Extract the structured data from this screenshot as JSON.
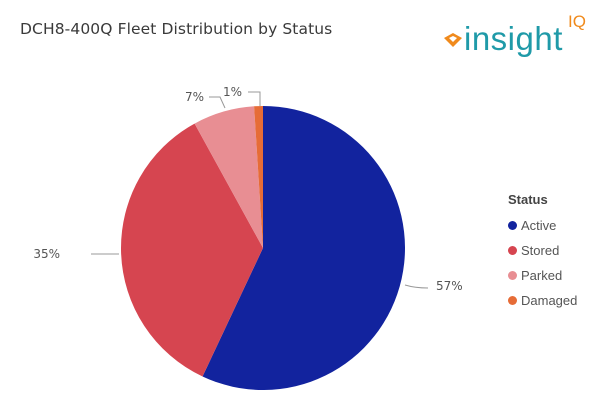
{
  "title": "DCH8-400Q Fleet Distribution by Status",
  "logo": {
    "text": "insight",
    "superscript": "IQ",
    "text_color": "#1f9aa8",
    "accent_color": "#f08a1c"
  },
  "chart_data": {
    "type": "pie",
    "title": "DCH8-400Q Fleet Distribution by Status",
    "categories": [
      "Active",
      "Stored",
      "Parked",
      "Damaged"
    ],
    "values": [
      57,
      35,
      7,
      1
    ],
    "labels": [
      "57%",
      "35%",
      "7%",
      "1%"
    ],
    "colors": [
      "#12239e",
      "#d64550",
      "#e88e93",
      "#e66c37"
    ],
    "legend": {
      "title": "Status",
      "position": "right"
    },
    "start_angle": "top, clockwise"
  },
  "legend": {
    "title": "Status",
    "items": [
      {
        "label": "Active",
        "color": "#12239e"
      },
      {
        "label": "Stored",
        "color": "#d64550"
      },
      {
        "label": "Parked",
        "color": "#e88e93"
      },
      {
        "label": "Damaged",
        "color": "#e66c37"
      }
    ]
  }
}
